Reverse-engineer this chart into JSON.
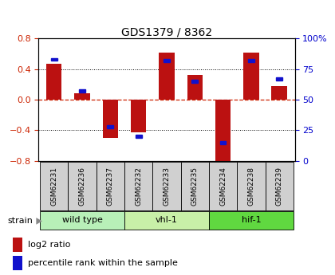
{
  "title": "GDS1379 / 8362",
  "samples": [
    "GSM62231",
    "GSM62236",
    "GSM62237",
    "GSM62232",
    "GSM62233",
    "GSM62235",
    "GSM62234",
    "GSM62238",
    "GSM62239"
  ],
  "log2_ratio": [
    0.47,
    0.08,
    -0.5,
    -0.43,
    0.62,
    0.32,
    -0.82,
    0.62,
    0.18
  ],
  "percentile": [
    83,
    57,
    28,
    20,
    82,
    65,
    15,
    82,
    67
  ],
  "groups": [
    {
      "name": "wild type",
      "start": 0,
      "end": 3,
      "color": "#b8f0b8"
    },
    {
      "name": "vhl-1",
      "start": 3,
      "end": 6,
      "color": "#c8f0a8"
    },
    {
      "name": "hif-1",
      "start": 6,
      "end": 9,
      "color": "#60d840"
    }
  ],
  "bar_color": "#bb1111",
  "perc_color": "#1111cc",
  "ylim_left": [
    -0.8,
    0.8
  ],
  "ylim_right": [
    0,
    100
  ],
  "yticks_left": [
    -0.8,
    -0.4,
    0.0,
    0.4,
    0.8
  ],
  "yticks_right": [
    0,
    25,
    50,
    75,
    100
  ],
  "left_tick_color": "#cc2200",
  "right_tick_color": "#0000cc",
  "hline_color": "#cc2200",
  "bg_color": "#ffffff",
  "sample_box_color": "#d0d0d0",
  "legend_red": "#bb1111",
  "legend_blue": "#1111cc"
}
